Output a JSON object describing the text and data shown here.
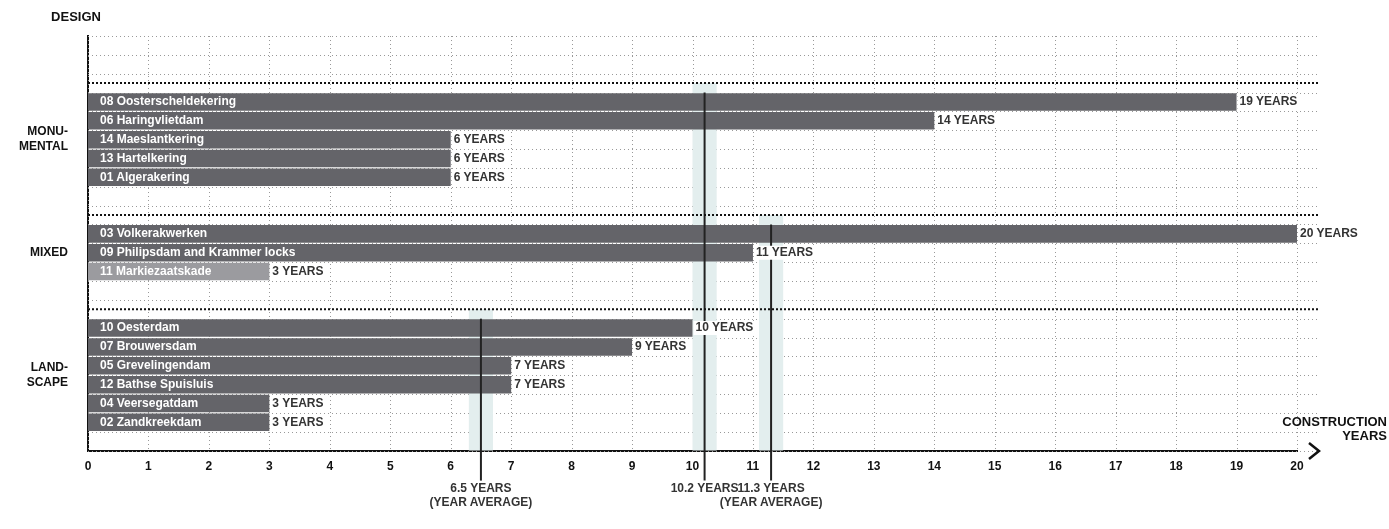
{
  "chart_data": {
    "type": "bar",
    "orientation": "horizontal",
    "ylabel": "DESIGN",
    "xlabel": "CONSTRUCTION\nYEARS",
    "categories": [
      null,
      null,
      null,
      "08 Oosterscheldekering",
      "06 Haringvlietdam",
      "14 Maeslantkering",
      "13 Hartelkering",
      "01 Algerakering",
      null,
      null,
      "03 Volkerakwerken",
      "09 Philipsdam and Krammer locks",
      "11 Markiezaatskade",
      null,
      null,
      "10 Oesterdam",
      "07 Brouwersdam",
      "05 Grevelingendam",
      "12 Bathse Spuisluis",
      "04 Veersegatdam",
      "02 Zandkreekdam",
      null
    ],
    "values": [
      null,
      null,
      null,
      19,
      14,
      6,
      6,
      6,
      null,
      null,
      20,
      11,
      3,
      null,
      null,
      10,
      9,
      7,
      7,
      3,
      3,
      null
    ],
    "value_labels": [
      null,
      null,
      null,
      "19 YEARS",
      "14 YEARS",
      "6 YEARS",
      "6 YEARS",
      "6 YEARS",
      null,
      null,
      "20 YEARS",
      "11 YEARS",
      "3 YEARS",
      null,
      null,
      "10 YEARS",
      "9 YEARS",
      "7 YEARS",
      "7 YEARS",
      "3 YEARS",
      "3 YEARS",
      null
    ],
    "colors": [
      null,
      null,
      null,
      "#646469",
      "#646469",
      "#646469",
      "#646469",
      "#646469",
      null,
      null,
      "#646469",
      "#646469",
      "#9b9b9f",
      null,
      null,
      "#646469",
      "#646469",
      "#646469",
      "#646469",
      "#646469",
      "#646469",
      null
    ],
    "xlim": [
      0,
      20
    ],
    "xticks": [
      0,
      1,
      2,
      3,
      4,
      5,
      6,
      7,
      8,
      9,
      10,
      11,
      12,
      13,
      14,
      15,
      16,
      17,
      18,
      19,
      20
    ],
    "annotations": [
      "MONU-\nMENTAL",
      "MIXED",
      "LAND-\nSCAPE"
    ],
    "ref_lines": [
      {
        "axis": "x",
        "value": 10.2,
        "label": "10.2 YEARS",
        "color": "#222222"
      },
      {
        "axis": "x",
        "value": 11.3,
        "label": "11.3 YEARS\n(YEAR AVERAGE)",
        "color": "#222222"
      },
      {
        "axis": "x",
        "value": 6.5,
        "label": "6.5 YEARS\n(YEAR AVERAGE)",
        "color": "#222222"
      }
    ],
    "bands": [
      {
        "axis": "x",
        "from": 10.0,
        "to": 10.4,
        "color": "#e3eeee"
      },
      {
        "axis": "x",
        "from": 11.1,
        "to": 11.5,
        "color": "#e3eeee"
      },
      {
        "axis": "x",
        "from": 6.3,
        "to": 6.7,
        "color": "#e3eeee"
      }
    ],
    "grid": true
  }
}
